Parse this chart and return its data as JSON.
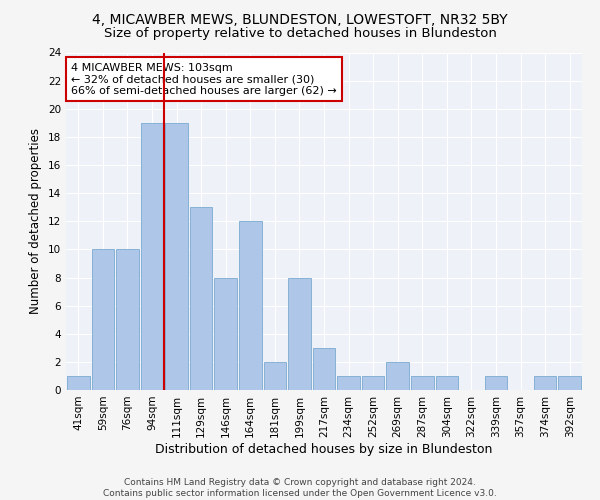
{
  "title": "4, MICAWBER MEWS, BLUNDESTON, LOWESTOFT, NR32 5BY",
  "subtitle": "Size of property relative to detached houses in Blundeston",
  "xlabel": "Distribution of detached houses by size in Blundeston",
  "ylabel": "Number of detached properties",
  "bar_labels": [
    "41sqm",
    "59sqm",
    "76sqm",
    "94sqm",
    "111sqm",
    "129sqm",
    "146sqm",
    "164sqm",
    "181sqm",
    "199sqm",
    "217sqm",
    "234sqm",
    "252sqm",
    "269sqm",
    "287sqm",
    "304sqm",
    "322sqm",
    "339sqm",
    "357sqm",
    "374sqm",
    "392sqm"
  ],
  "bar_values": [
    1,
    10,
    10,
    19,
    19,
    13,
    8,
    12,
    2,
    8,
    3,
    1,
    1,
    2,
    1,
    1,
    0,
    1,
    0,
    1,
    1
  ],
  "bar_color": "#aec6e8",
  "bar_edge_color": "#7aabd0",
  "vline_color": "#cc0000",
  "annotation_line1": "4 MICAWBER MEWS: 103sqm",
  "annotation_line2": "← 32% of detached houses are smaller (30)",
  "annotation_line3": "66% of semi-detached houses are larger (62) →",
  "annotation_box_color": "#ffffff",
  "annotation_box_edge": "#cc0000",
  "ylim": [
    0,
    24
  ],
  "yticks": [
    0,
    2,
    4,
    6,
    8,
    10,
    12,
    14,
    16,
    18,
    20,
    22,
    24
  ],
  "footer1": "Contains HM Land Registry data © Crown copyright and database right 2024.",
  "footer2": "Contains public sector information licensed under the Open Government Licence v3.0.",
  "bg_color": "#eef2f8",
  "grid_color": "#ffffff",
  "title_fontsize": 10,
  "subtitle_fontsize": 9.5,
  "ylabel_fontsize": 8.5,
  "xlabel_fontsize": 9,
  "tick_fontsize": 7.5,
  "annotation_fontsize": 8,
  "footer_fontsize": 6.5
}
